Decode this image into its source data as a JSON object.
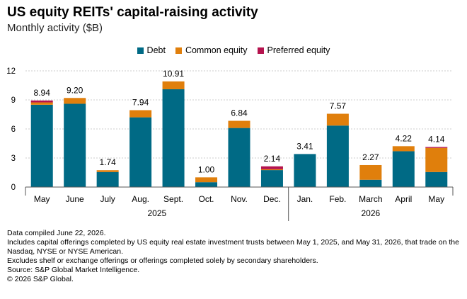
{
  "title": "US equity REITs' capital-raising activity",
  "subtitle": "Monthly activity ($B)",
  "colors": {
    "debt": "#006a85",
    "common": "#e07f0c",
    "preferred": "#b5134e",
    "axis": "#555555",
    "grid": "#bdbdbd"
  },
  "legend": [
    {
      "label": "Debt",
      "color": "#006a85"
    },
    {
      "label": "Common equity",
      "color": "#e07f0c"
    },
    {
      "label": "Preferred equity",
      "color": "#b5134e"
    }
  ],
  "chart_data": {
    "type": "bar",
    "stacked": true,
    "categories": [
      "May",
      "June",
      "July",
      "Aug.",
      "Sept.",
      "Oct.",
      "Nov.",
      "Dec.",
      "Jan.",
      "Feb.",
      "March",
      "April",
      "May"
    ],
    "groups": [
      {
        "label": "2025",
        "count": 8
      },
      {
        "label": "2026",
        "count": 5
      }
    ],
    "series": [
      {
        "name": "Debt",
        "values": [
          8.5,
          8.6,
          1.55,
          7.2,
          10.1,
          0.5,
          6.1,
          1.75,
          3.41,
          6.35,
          0.75,
          3.7,
          1.55
        ]
      },
      {
        "name": "Common equity",
        "values": [
          0.24,
          0.6,
          0.19,
          0.74,
          0.81,
          0.5,
          0.74,
          0.09,
          0,
          1.22,
          1.52,
          0.52,
          2.49
        ]
      },
      {
        "name": "Preferred equity",
        "values": [
          0.2,
          0,
          0,
          0,
          0,
          0,
          0,
          0.3,
          0,
          0,
          0,
          0,
          0.1
        ]
      }
    ],
    "totals": [
      "8.94",
      "9.20",
      "1.74",
      "7.94",
      "10.91",
      "1.00",
      "6.84",
      "2.14",
      "3.41",
      "7.57",
      "2.27",
      "4.22",
      "4.14"
    ],
    "ylim": [
      0,
      12
    ],
    "yticks": [
      0,
      3,
      6,
      9,
      12
    ],
    "grid": true,
    "legend_position": "top-center"
  },
  "notes": [
    "Data compiled June 22, 2026.",
    "Includes capital offerings completed by US equity real estate investment trusts between May 1, 2025, and May 31, 2026, that trade on the Nasdaq, NYSE or NYSE American.",
    "Excludes shelf or exchange offerings or offerings completed solely by secondary shareholders.",
    "Source: S&P Global Market Intelligence.",
    "© 2026 S&P Global."
  ]
}
